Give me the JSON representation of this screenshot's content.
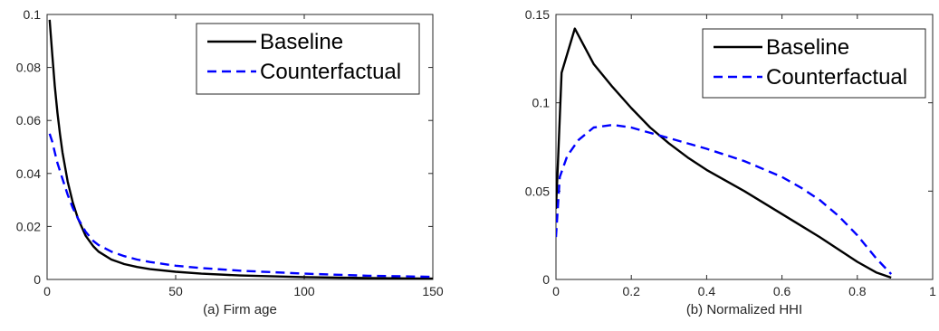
{
  "chart_data": [
    {
      "type": "line",
      "xlabel": "(a) Firm age",
      "ylabel": "",
      "title": "",
      "xlim": [
        0,
        150
      ],
      "ylim": [
        0,
        0.1
      ],
      "xticks": [
        0,
        50,
        100,
        150
      ],
      "yticks": [
        0,
        0.02,
        0.04,
        0.06,
        0.08,
        0.1
      ],
      "xtick_labels": [
        "0",
        "50",
        "100",
        "150"
      ],
      "ytick_labels": [
        "0",
        "0.02",
        "0.04",
        "0.06",
        "0.08",
        "0.1"
      ],
      "grid": false,
      "legend_position": "top-right",
      "series": [
        {
          "name": "Baseline",
          "color": "#000000",
          "dash": "solid",
          "x": [
            1,
            2,
            3,
            4,
            5,
            6,
            8,
            10,
            12,
            15,
            18,
            20,
            25,
            30,
            35,
            40,
            50,
            60,
            75,
            100,
            125,
            150
          ],
          "y": [
            0.098,
            0.085,
            0.073,
            0.063,
            0.055,
            0.048,
            0.037,
            0.029,
            0.023,
            0.0165,
            0.0125,
            0.0105,
            0.0075,
            0.0058,
            0.0047,
            0.0039,
            0.0029,
            0.0022,
            0.0015,
            0.0009,
            0.0005,
            0.0003
          ]
        },
        {
          "name": "Counterfactual",
          "color": "#0000ff",
          "dash": "dashed",
          "x": [
            1,
            2,
            3,
            4,
            5,
            6,
            8,
            10,
            12,
            15,
            18,
            20,
            25,
            30,
            35,
            40,
            50,
            60,
            75,
            100,
            125,
            150
          ],
          "y": [
            0.055,
            0.052,
            0.048,
            0.044,
            0.041,
            0.038,
            0.032,
            0.027,
            0.023,
            0.018,
            0.0145,
            0.013,
            0.0105,
            0.0088,
            0.0075,
            0.0066,
            0.0052,
            0.0043,
            0.0033,
            0.0022,
            0.0014,
            0.001
          ]
        }
      ]
    },
    {
      "type": "line",
      "xlabel": "(b) Normalized HHI",
      "ylabel": "",
      "title": "",
      "xlim": [
        0,
        1
      ],
      "ylim": [
        0,
        0.15
      ],
      "xticks": [
        0,
        0.2,
        0.4,
        0.6,
        0.8,
        1
      ],
      "yticks": [
        0,
        0.05,
        0.1,
        0.15
      ],
      "xtick_labels": [
        "0",
        "0.2",
        "0.4",
        "0.6",
        "0.8",
        "1"
      ],
      "ytick_labels": [
        "0",
        "0.05",
        "0.1",
        "0.15"
      ],
      "grid": false,
      "legend_position": "top-right",
      "series": [
        {
          "name": "Baseline",
          "color": "#000000",
          "dash": "solid",
          "x": [
            0.0,
            0.005,
            0.015,
            0.05,
            0.1,
            0.15,
            0.2,
            0.25,
            0.3,
            0.35,
            0.4,
            0.5,
            0.6,
            0.7,
            0.8,
            0.85,
            0.89
          ],
          "y": [
            0.04,
            0.065,
            0.117,
            0.142,
            0.122,
            0.109,
            0.097,
            0.086,
            0.077,
            0.069,
            0.062,
            0.05,
            0.037,
            0.024,
            0.01,
            0.004,
            0.001
          ]
        },
        {
          "name": "Counterfactual",
          "color": "#0000ff",
          "dash": "dashed",
          "x": [
            0.0,
            0.01,
            0.03,
            0.06,
            0.1,
            0.15,
            0.2,
            0.25,
            0.3,
            0.4,
            0.5,
            0.6,
            0.65,
            0.7,
            0.75,
            0.8,
            0.85,
            0.89
          ],
          "y": [
            0.024,
            0.058,
            0.07,
            0.079,
            0.086,
            0.0875,
            0.086,
            0.083,
            0.08,
            0.074,
            0.067,
            0.058,
            0.052,
            0.045,
            0.036,
            0.025,
            0.012,
            0.003
          ]
        }
      ]
    }
  ]
}
